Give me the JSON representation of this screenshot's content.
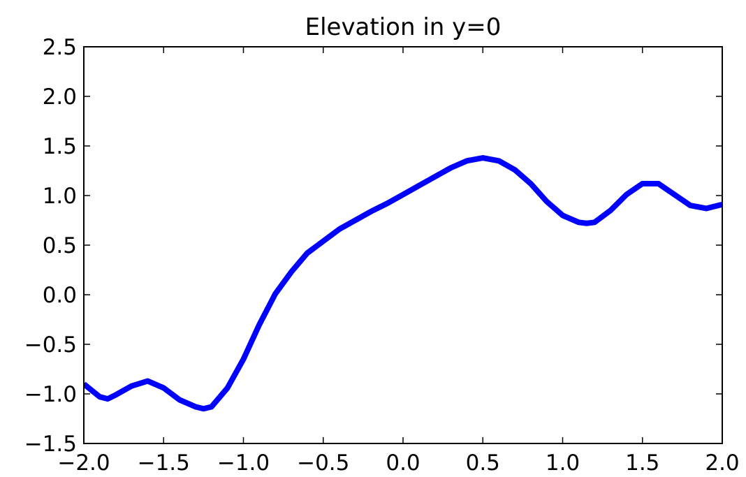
{
  "chart_data": {
    "type": "line",
    "title": "Elevation in y=0",
    "x": [
      -2.0,
      -1.9,
      -1.85,
      -1.8,
      -1.7,
      -1.6,
      -1.5,
      -1.4,
      -1.3,
      -1.25,
      -1.2,
      -1.1,
      -1.0,
      -0.9,
      -0.8,
      -0.7,
      -0.6,
      -0.5,
      -0.4,
      -0.3,
      -0.2,
      -0.1,
      0.0,
      0.1,
      0.2,
      0.3,
      0.4,
      0.5,
      0.6,
      0.7,
      0.8,
      0.9,
      1.0,
      1.1,
      1.15,
      1.2,
      1.3,
      1.4,
      1.5,
      1.6,
      1.7,
      1.8,
      1.9,
      2.0
    ],
    "series": [
      {
        "color": "#0000ff",
        "values": [
          -0.9,
          -1.03,
          -1.05,
          -1.01,
          -0.92,
          -0.87,
          -0.94,
          -1.06,
          -1.13,
          -1.15,
          -1.13,
          -0.94,
          -0.65,
          -0.3,
          0.01,
          0.23,
          0.42,
          0.54,
          0.66,
          0.75,
          0.84,
          0.92,
          1.01,
          1.1,
          1.19,
          1.28,
          1.35,
          1.38,
          1.35,
          1.26,
          1.12,
          0.94,
          0.8,
          0.73,
          0.72,
          0.73,
          0.85,
          1.01,
          1.12,
          1.12,
          1.01,
          0.9,
          0.87,
          0.91
        ]
      }
    ],
    "xlim": [
      -2,
      2
    ],
    "ylim": [
      -1.5,
      2.5
    ],
    "xticks": [
      {
        "value": -2,
        "label": "−2.0"
      },
      {
        "value": -1.5,
        "label": "−1.5"
      },
      {
        "value": -1,
        "label": "−1.0"
      },
      {
        "value": -0.5,
        "label": "−0.5"
      },
      {
        "value": 0,
        "label": "0.0"
      },
      0.5,
      {
        "value": 1,
        "label": "1.0"
      },
      1.5,
      {
        "value": 2,
        "label": "2.0"
      }
    ],
    "yticks": [
      {
        "value": -1.5,
        "label": "−1.5"
      },
      {
        "value": -1,
        "label": "−1.0"
      },
      {
        "value": -0.5,
        "label": "−0.5"
      },
      {
        "value": 0,
        "label": "0.0"
      },
      0.5,
      {
        "value": 1,
        "label": "1.0"
      },
      1.5,
      {
        "value": 2,
        "label": "2.0"
      },
      2.5
    ]
  }
}
